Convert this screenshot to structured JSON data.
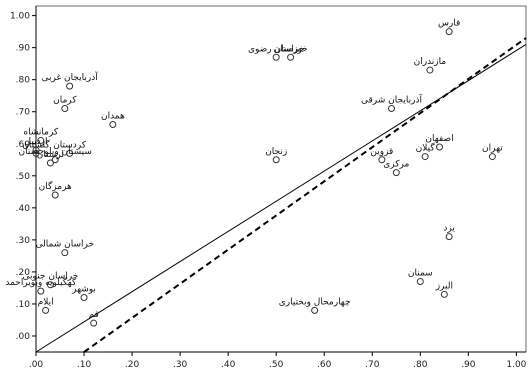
{
  "chart_data": {
    "type": "scatter",
    "title": "",
    "xlabel": "",
    "ylabel": "",
    "xlim": [
      0,
      1.02
    ],
    "ylim": [
      -0.05,
      1.03
    ],
    "xticks": [
      ".00",
      ".10",
      ".20",
      ".30",
      ".40",
      ".50",
      ".60",
      ".70",
      ".80",
      ".90",
      "1.00"
    ],
    "yticks": [
      ".00",
      ".10",
      ".20",
      ".30",
      ".40",
      ".50",
      ".60",
      ".70",
      ".80",
      ".90",
      "1.00"
    ],
    "grid": false,
    "reference_lines": [
      {
        "style": "solid",
        "x": [
          0.0,
          1.02
        ],
        "y": [
          -0.05,
          0.91
        ]
      },
      {
        "style": "dashed",
        "x": [
          0.1,
          1.02
        ],
        "y": [
          -0.05,
          0.93
        ]
      }
    ],
    "points": [
      {
        "label": "فارس",
        "x": 0.86,
        "y": 0.95
      },
      {
        "label": "خراسان رضوی",
        "x": 0.5,
        "y": 0.87
      },
      {
        "label": "خوزستان",
        "x": 0.53,
        "y": 0.87
      },
      {
        "label": "مازندران",
        "x": 0.82,
        "y": 0.83
      },
      {
        "label": "آذربایجان غربی",
        "x": 0.07,
        "y": 0.78
      },
      {
        "label": "کرمان",
        "x": 0.06,
        "y": 0.71
      },
      {
        "label": "آذربایجان شرقی",
        "x": 0.74,
        "y": 0.71
      },
      {
        "label": "همدان",
        "x": 0.16,
        "y": 0.66
      },
      {
        "label": "کرمانشاه",
        "x": 0.01,
        "y": 0.61
      },
      {
        "label": "اردبیل",
        "x": 0.0,
        "y": 0.58
      },
      {
        "label": "گلستان",
        "x": 0.0,
        "y": 0.57
      },
      {
        "label": "کردستان",
        "x": 0.07,
        "y": 0.57
      },
      {
        "label": "سیستان وبلوچستان",
        "x": 0.04,
        "y": 0.55
      },
      {
        "label": "لرستان",
        "x": 0.03,
        "y": 0.54
      },
      {
        "label": "زنجان",
        "x": 0.5,
        "y": 0.55
      },
      {
        "label": "قزوین",
        "x": 0.72,
        "y": 0.55
      },
      {
        "label": "اصفهان",
        "x": 0.84,
        "y": 0.59
      },
      {
        "label": "تهران",
        "x": 0.95,
        "y": 0.56
      },
      {
        "label": "گیلان",
        "x": 0.81,
        "y": 0.56
      },
      {
        "label": "مرکزی",
        "x": 0.75,
        "y": 0.51
      },
      {
        "label": "هرمزگان",
        "x": 0.04,
        "y": 0.44
      },
      {
        "label": "یزد",
        "x": 0.86,
        "y": 0.31
      },
      {
        "label": "خراسان شمالی",
        "x": 0.06,
        "y": 0.26
      },
      {
        "label": "سمنان",
        "x": 0.8,
        "y": 0.17
      },
      {
        "label": "خراسان جنوبی",
        "x": 0.03,
        "y": 0.16
      },
      {
        "label": "کهگیلویه وبویراحمد",
        "x": 0.01,
        "y": 0.14
      },
      {
        "label": "البرز",
        "x": 0.85,
        "y": 0.13
      },
      {
        "label": "بوشهر",
        "x": 0.1,
        "y": 0.12
      },
      {
        "label": "ایلام",
        "x": 0.02,
        "y": 0.08
      },
      {
        "label": "چهارمحال وبختیاری",
        "x": 0.58,
        "y": 0.08
      },
      {
        "label": "قم",
        "x": 0.12,
        "y": 0.04
      }
    ]
  }
}
